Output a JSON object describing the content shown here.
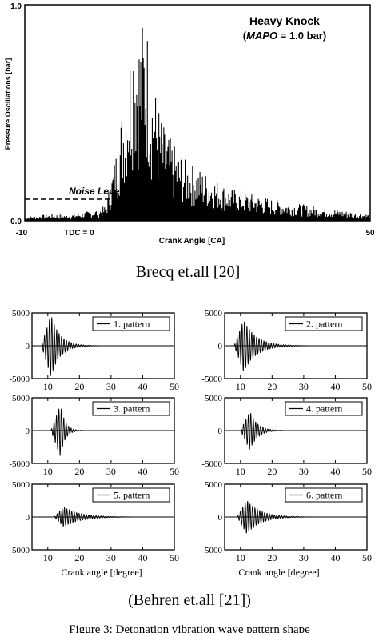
{
  "figure_caption": "Figure 3: Detonation vibration wave pattern shape",
  "chart_data": [
    {
      "type": "area",
      "title": "Heavy Knock",
      "subtitle": "(MAPO = 1.0 bar)",
      "subtitle_parts": {
        "open": "(",
        "italic": "MAPO",
        "rest": " = 1.0 bar)"
      },
      "xlabel": "Crank Angle [CA]",
      "ylabel": "Pressure Oscillations [bar]",
      "xlim": [
        -10,
        50
      ],
      "ylim": [
        0,
        1.0
      ],
      "x_ticks": [
        "-10",
        "50"
      ],
      "y_ticks": [
        "0.0",
        "1.0"
      ],
      "tdc_label": "TDC = 0",
      "noise_level_label": "Noise Level",
      "noise_level_value": 0.1,
      "series": [
        {
          "x": [
            -10,
            -6,
            -2,
            0,
            2,
            4,
            5,
            6,
            7,
            8,
            9,
            10,
            11,
            12,
            14,
            16,
            18,
            20,
            25,
            30,
            35,
            40,
            45,
            50
          ],
          "values": [
            0.02,
            0.03,
            0.03,
            0.04,
            0.05,
            0.07,
            0.2,
            0.35,
            0.55,
            0.75,
            1.0,
            0.9,
            1.0,
            0.7,
            0.45,
            0.35,
            0.28,
            0.25,
            0.16,
            0.12,
            0.09,
            0.07,
            0.05,
            0.03
          ]
        }
      ],
      "caption": "Brecq et.all [20]"
    },
    {
      "type": "line",
      "caption": "(Behren et.all [21])",
      "xlabel": "Crank angle [degree]",
      "xlim": [
        5,
        50
      ],
      "ylim": [
        -5000,
        5000
      ],
      "x_ticks": [
        "10",
        "20",
        "30",
        "40",
        "50"
      ],
      "y_ticks": [
        "5000",
        "0",
        "-5000"
      ],
      "panels": [
        {
          "name": "1. pattern",
          "peak_angle": 11,
          "amplitude": 4800,
          "decay": 0.18
        },
        {
          "name": "2. pattern",
          "peak_angle": 11,
          "amplitude": 4000,
          "decay": 0.13
        },
        {
          "name": "3. pattern",
          "peak_angle": 14,
          "amplitude": 4000,
          "decay": 0.35
        },
        {
          "name": "4. pattern",
          "peak_angle": 13,
          "amplitude": 3000,
          "decay": 0.22
        },
        {
          "name": "5. pattern",
          "peak_angle": 15,
          "amplitude": 1500,
          "decay": 0.1
        },
        {
          "name": "6. pattern",
          "peak_angle": 12,
          "amplitude": 2600,
          "decay": 0.12
        }
      ]
    }
  ]
}
